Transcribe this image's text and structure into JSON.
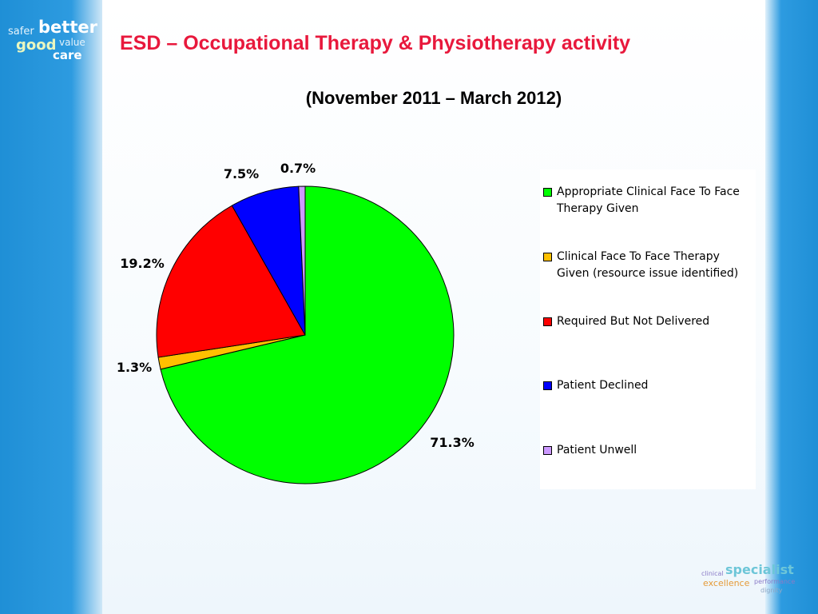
{
  "slide": {
    "title": "ESD – Occupational Therapy & Physiotherapy activity",
    "subtitle": "(November 2011 – March 2012)"
  },
  "branding": {
    "left_logo_words": [
      "safer",
      "better",
      "good",
      "value",
      "care"
    ],
    "right_logo_words": [
      "clinical",
      "specialist",
      "excellence",
      "performance",
      "dignity"
    ]
  },
  "chart_data": {
    "type": "pie",
    "title": "",
    "start_angle_deg": 0,
    "direction": "clockwise",
    "slices": [
      {
        "label": "Appropriate Clinical Face To Face Therapy Given",
        "value": 71.3,
        "display": "71.3%",
        "color": "#00ff00"
      },
      {
        "label": "Clinical Face To Face Therapy Given (resource issue identified)",
        "value": 1.3,
        "display": "1.3%",
        "color": "#ffc000"
      },
      {
        "label": "Required But Not Delivered",
        "value": 19.2,
        "display": "19.2%",
        "color": "#ff0000"
      },
      {
        "label": "Patient Declined",
        "value": 7.5,
        "display": "7.5%",
        "color": "#0000ff"
      },
      {
        "label": "Patient Unwell",
        "value": 0.7,
        "display": "0.7%",
        "color": "#cc99ff"
      }
    ],
    "legend_position": "right"
  }
}
